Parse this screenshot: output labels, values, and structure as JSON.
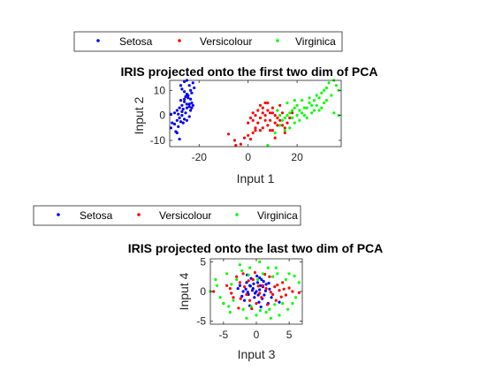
{
  "colors": {
    "Setosa": "#0000ff",
    "Versicolour": "#ff0000",
    "Virginica": "#00ff00",
    "axis": "#262626"
  },
  "chart_data": [
    {
      "type": "scatter",
      "title": "IRIS projected onto the first two dim of PCA",
      "xlabel": "Input 1",
      "ylabel": "Input 2",
      "xlim": [
        -32,
        38
      ],
      "ylim": [
        -12.5,
        14
      ],
      "xticks": [
        -20,
        0,
        20
      ],
      "xtick_labels": [
        "-20",
        "0",
        "20"
      ],
      "yticks": [
        -10,
        0,
        10
      ],
      "ytick_labels": [
        "-10",
        "0",
        "10"
      ],
      "grid": false,
      "legend": {
        "entries": [
          "Setosa",
          "Versicolour",
          "Virginica"
        ],
        "placement": "above",
        "orientation": "horizontal"
      },
      "series": [
        {
          "name": "Setosa",
          "color": "#0000ff",
          "points": [
            [
              -27.5,
              12
            ],
            [
              -26,
              13.5
            ],
            [
              -25,
              14
            ],
            [
              -24,
              12
            ],
            [
              -23.5,
              10
            ],
            [
              -23,
              9
            ],
            [
              -25,
              8.5
            ],
            [
              -26,
              9.5
            ],
            [
              -27,
              10.5
            ],
            [
              -24.5,
              7
            ],
            [
              -23,
              5
            ],
            [
              -24,
              3.5
            ],
            [
              -25,
              4.5
            ],
            [
              -26,
              5.5
            ],
            [
              -27,
              4
            ],
            [
              -28,
              3
            ],
            [
              -29,
              2
            ],
            [
              -30,
              1
            ],
            [
              -31.5,
              0.5
            ],
            [
              -26.5,
              2.5
            ],
            [
              -25.5,
              1
            ],
            [
              -27,
              0
            ],
            [
              -28,
              -1
            ],
            [
              -29,
              -2
            ],
            [
              -30,
              -3.5
            ],
            [
              -31.5,
              -5
            ],
            [
              -28.5,
              -4.5
            ],
            [
              -29.5,
              -6.5
            ],
            [
              -28,
              -9.5
            ],
            [
              -25,
              -2
            ],
            [
              -23.5,
              2
            ],
            [
              -22.5,
              4
            ],
            [
              -24,
              -0.5
            ],
            [
              -26,
              -1.5
            ],
            [
              -27.5,
              6
            ],
            [
              -22,
              11
            ],
            [
              -22.5,
              13
            ],
            [
              -29,
              -7
            ],
            [
              -31,
              -3
            ],
            [
              -26,
              6.5
            ],
            [
              -24.5,
              8
            ],
            [
              -27,
              1.5
            ],
            [
              -25,
              3
            ],
            [
              -23.5,
              6.5
            ],
            [
              -28.5,
              0.5
            ],
            [
              -26.5,
              -3
            ],
            [
              -24,
              4.5
            ],
            [
              -27.5,
              -2.5
            ],
            [
              -25.5,
              7.5
            ],
            [
              -23,
              3
            ]
          ]
        },
        {
          "name": "Versicolour",
          "color": "#ff0000",
          "points": [
            [
              -8,
              -7.5
            ],
            [
              -5.5,
              -10
            ],
            [
              -5,
              -12
            ],
            [
              -3,
              -11.5
            ],
            [
              -1.5,
              -9
            ],
            [
              0,
              -8
            ],
            [
              1,
              -9.5
            ],
            [
              2,
              -7
            ],
            [
              3,
              -5
            ],
            [
              4,
              -3
            ],
            [
              5,
              -1
            ],
            [
              6,
              1
            ],
            [
              7,
              0
            ],
            [
              8,
              2
            ],
            [
              9,
              1
            ],
            [
              10,
              3
            ],
            [
              11,
              0
            ],
            [
              12,
              -1
            ],
            [
              13,
              -2
            ],
            [
              14,
              -4
            ],
            [
              15,
              -5
            ],
            [
              16,
              -3
            ],
            [
              17,
              -1
            ],
            [
              18,
              1
            ],
            [
              2,
              -2
            ],
            [
              3,
              0
            ],
            [
              4,
              2
            ],
            [
              5,
              4
            ],
            [
              6,
              3
            ],
            [
              7,
              5
            ],
            [
              8,
              -4
            ],
            [
              9,
              -2
            ],
            [
              10,
              -6
            ],
            [
              11,
              -3
            ],
            [
              12,
              2
            ],
            [
              13,
              4
            ],
            [
              14,
              1
            ],
            [
              15,
              -7
            ],
            [
              3,
              -6
            ],
            [
              0,
              -3
            ],
            [
              1,
              -1
            ],
            [
              2,
              1
            ],
            [
              6,
              -5
            ],
            [
              7,
              -2
            ],
            [
              10,
              1
            ],
            [
              12,
              -4
            ],
            [
              8,
              5
            ],
            [
              5,
              -6
            ],
            [
              9,
              -6
            ],
            [
              11,
              -9
            ]
          ]
        },
        {
          "name": "Virginica",
          "color": "#00ff00",
          "points": [
            [
              8,
              -12
            ],
            [
              11,
              -7
            ],
            [
              13,
              -4
            ],
            [
              14,
              -2
            ],
            [
              15,
              -1
            ],
            [
              16,
              0
            ],
            [
              17,
              1
            ],
            [
              18,
              2
            ],
            [
              19,
              3
            ],
            [
              20,
              4
            ],
            [
              21,
              2
            ],
            [
              22,
              1
            ],
            [
              23,
              0
            ],
            [
              24,
              3
            ],
            [
              25,
              5
            ],
            [
              26,
              4
            ],
            [
              27,
              6
            ],
            [
              28,
              8
            ],
            [
              29,
              7
            ],
            [
              30,
              9
            ],
            [
              31,
              10
            ],
            [
              32,
              11
            ],
            [
              33,
              13
            ],
            [
              35,
              14
            ],
            [
              36,
              12
            ],
            [
              37,
              10
            ],
            [
              34,
              8
            ],
            [
              30,
              3
            ],
            [
              27,
              2
            ],
            [
              24,
              -1
            ],
            [
              21,
              -2
            ],
            [
              19,
              -3
            ],
            [
              17,
              -5
            ],
            [
              15,
              -6
            ],
            [
              13,
              0
            ],
            [
              16,
              5
            ],
            [
              19,
              6
            ],
            [
              22,
              6
            ],
            [
              25,
              7
            ],
            [
              28,
              4
            ],
            [
              31,
              5
            ],
            [
              18,
              -1
            ],
            [
              20,
              0
            ],
            [
              23,
              3
            ],
            [
              26,
              1
            ],
            [
              29,
              2
            ],
            [
              32,
              6
            ],
            [
              35,
              1
            ],
            [
              37,
              0
            ],
            [
              12,
              2
            ]
          ]
        }
      ]
    },
    {
      "type": "scatter",
      "title": "IRIS projected onto the last two dim of PCA",
      "xlabel": "Input 3",
      "ylabel": "Input 4",
      "xlim": [
        -7,
        7
      ],
      "ylim": [
        -5.5,
        5.5
      ],
      "xticks": [
        -5,
        0,
        5
      ],
      "xtick_labels": [
        "-5",
        "0",
        "5"
      ],
      "yticks": [
        -5,
        0,
        5
      ],
      "ytick_labels": [
        "-5",
        "0",
        "5"
      ],
      "grid": false,
      "legend": {
        "entries": [
          "Setosa",
          "Versicolour",
          "Virginica"
        ],
        "placement": "above",
        "orientation": "horizontal"
      },
      "series": [
        {
          "name": "Setosa",
          "color": "#0000ff",
          "points": [
            [
              -1.5,
              1.5
            ],
            [
              -1,
              1
            ],
            [
              -0.5,
              0.5
            ],
            [
              0,
              0
            ],
            [
              0.5,
              0.3
            ],
            [
              1,
              0.8
            ],
            [
              -2,
              0
            ],
            [
              -1.2,
              -0.5
            ],
            [
              -0.3,
              -1
            ],
            [
              0.2,
              1.5
            ],
            [
              0.8,
              2
            ],
            [
              1.5,
              1.2
            ],
            [
              -0.8,
              2.2
            ],
            [
              -2.5,
              1
            ],
            [
              -1.8,
              -1.5
            ],
            [
              0.4,
              -1.8
            ],
            [
              1.2,
              -0.6
            ],
            [
              2,
              0.4
            ],
            [
              -0.6,
              0.2
            ],
            [
              0.9,
              -1.2
            ],
            [
              -1.4,
              2.8
            ],
            [
              0.1,
              2.6
            ],
            [
              1.8,
              -2
            ],
            [
              -2.2,
              -0.8
            ],
            [
              0.6,
              1
            ],
            [
              -0.2,
              -0.3
            ],
            [
              1.4,
              0.1
            ],
            [
              -1,
              -2.4
            ],
            [
              3.5,
              -1.8
            ],
            [
              -0.9,
              0.9
            ],
            [
              0.3,
              -0.6
            ],
            [
              -1.6,
              0.4
            ],
            [
              1.1,
              1.7
            ],
            [
              -0.4,
              1.3
            ],
            [
              2.3,
              -1
            ],
            [
              -2.8,
              0.5
            ],
            [
              0.7,
              -2.6
            ],
            [
              1.9,
              1.4
            ],
            [
              -1.3,
              -0.1
            ],
            [
              0.5,
              2.3
            ]
          ]
        },
        {
          "name": "Versicolour",
          "color": "#ff0000",
          "points": [
            [
              -6.5,
              0
            ],
            [
              -4,
              0.5
            ],
            [
              -3.5,
              -1
            ],
            [
              -2.5,
              1.5
            ],
            [
              -1.5,
              -0.5
            ],
            [
              -0.5,
              2
            ],
            [
              0.5,
              -0.3
            ],
            [
              1.5,
              0.5
            ],
            [
              2.5,
              -0.5
            ],
            [
              3.5,
              0.2
            ],
            [
              4.5,
              -0.6
            ],
            [
              5.5,
              0
            ],
            [
              6.5,
              -0.2
            ],
            [
              -3,
              2.5
            ],
            [
              -2,
              3
            ],
            [
              -1,
              -1.5
            ],
            [
              0,
              -2
            ],
            [
              1,
              1
            ],
            [
              2,
              2.5
            ],
            [
              3,
              -1.5
            ],
            [
              4,
              1.5
            ],
            [
              -5,
              -2
            ],
            [
              -4.5,
              1
            ],
            [
              -2.7,
              -2.8
            ],
            [
              -1.8,
              0.8
            ],
            [
              0.8,
              -1
            ],
            [
              2.8,
              0.8
            ],
            [
              3.8,
              -0.9
            ],
            [
              5,
              0.6
            ],
            [
              -0.2,
              3.2
            ],
            [
              1.7,
              -2.2
            ],
            [
              -3.8,
              -0.3
            ],
            [
              2.2,
              -0.1
            ],
            [
              -1.2,
              1.8
            ],
            [
              0.3,
              0.9
            ],
            [
              4.2,
              0.4
            ],
            [
              -2.4,
              -1.2
            ],
            [
              1.3,
              2.9
            ],
            [
              -0.7,
              -2.9
            ],
            [
              3.2,
              1.1
            ]
          ]
        },
        {
          "name": "Virginica",
          "color": "#00ff00",
          "points": [
            [
              -7,
              0
            ],
            [
              -5,
              -2
            ],
            [
              -4,
              -3.5
            ],
            [
              -3,
              2
            ],
            [
              -2,
              -3
            ],
            [
              -1,
              4
            ],
            [
              0,
              -4
            ],
            [
              1,
              3
            ],
            [
              2,
              -3
            ],
            [
              3,
              4
            ],
            [
              4,
              -2
            ],
            [
              5,
              3
            ],
            [
              6,
              -1
            ],
            [
              -6,
              1
            ],
            [
              -4.5,
              3
            ],
            [
              -3.5,
              -1.5
            ],
            [
              -2.5,
              4.5
            ],
            [
              -1.5,
              -4.5
            ],
            [
              0.5,
              5
            ],
            [
              1.5,
              -3.5
            ],
            [
              2.5,
              2.5
            ],
            [
              3.5,
              -4
            ],
            [
              4.5,
              2
            ],
            [
              5.5,
              -2
            ],
            [
              6.5,
              1.5
            ],
            [
              -5.5,
              -1
            ],
            [
              -3.8,
              1.2
            ],
            [
              -0.8,
              -2.5
            ],
            [
              2.8,
              -2.2
            ],
            [
              4.8,
              -3
            ],
            [
              -2.2,
              3.5
            ],
            [
              0.2,
              2
            ],
            [
              1.8,
              4
            ],
            [
              3.2,
              3
            ],
            [
              -4.2,
              -2.5
            ],
            [
              -1.2,
              2.8
            ],
            [
              2.2,
              -4.5
            ],
            [
              -6.2,
              2
            ],
            [
              5.8,
              2.6
            ],
            [
              0.6,
              -3.2
            ]
          ]
        }
      ]
    }
  ]
}
